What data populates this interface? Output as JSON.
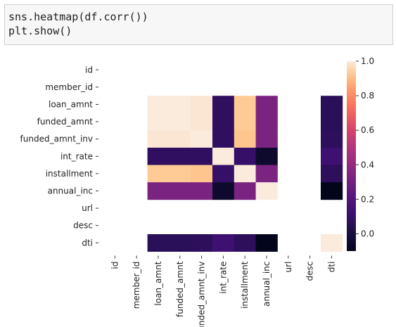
{
  "code_cell": {
    "lines": [
      "sns.heatmap(df.corr())",
      "plt.show()"
    ]
  },
  "chart_data": {
    "type": "heatmap",
    "title": "",
    "xlabel": "",
    "ylabel": "",
    "labels": [
      "id",
      "member_id",
      "loan_amnt",
      "funded_amnt",
      "funded_amnt_inv",
      "int_rate",
      "installment",
      "annual_inc",
      "url",
      "desc",
      "dti"
    ],
    "x_tick_labels": [
      "id",
      "member_id",
      "loan_amnt",
      "funded_amnt",
      "funded_amnt_inv",
      "int_rate",
      "installment",
      "annual_inc",
      "url",
      "desc",
      "dti"
    ],
    "y_tick_labels": [
      "id",
      "member_id",
      "loan_amnt",
      "funded_amnt",
      "funded_amnt_inv",
      "int_rate",
      "installment",
      "annual_inc",
      "url",
      "desc",
      "dti"
    ],
    "matrix": [
      [
        null,
        null,
        null,
        null,
        null,
        null,
        null,
        null,
        null,
        null,
        null
      ],
      [
        null,
        null,
        null,
        null,
        null,
        null,
        null,
        null,
        null,
        null,
        null
      ],
      [
        null,
        null,
        1.0,
        1.0,
        0.99,
        0.08,
        0.93,
        0.33,
        null,
        null,
        0.06
      ],
      [
        null,
        null,
        1.0,
        1.0,
        0.99,
        0.08,
        0.93,
        0.33,
        null,
        null,
        0.06
      ],
      [
        null,
        null,
        0.99,
        0.99,
        1.0,
        0.08,
        0.92,
        0.33,
        null,
        null,
        0.07
      ],
      [
        null,
        null,
        0.08,
        0.08,
        0.08,
        1.0,
        0.1,
        -0.05,
        null,
        null,
        0.13
      ],
      [
        null,
        null,
        0.93,
        0.93,
        0.92,
        0.1,
        1.0,
        0.33,
        null,
        null,
        0.07
      ],
      [
        null,
        null,
        0.33,
        0.33,
        0.33,
        -0.05,
        0.33,
        1.0,
        null,
        null,
        -0.1
      ],
      [
        null,
        null,
        null,
        null,
        null,
        null,
        null,
        null,
        null,
        null,
        null
      ],
      [
        null,
        null,
        null,
        null,
        null,
        null,
        null,
        null,
        null,
        null,
        null
      ],
      [
        null,
        null,
        0.06,
        0.06,
        0.07,
        0.13,
        0.07,
        -0.1,
        null,
        null,
        1.0
      ]
    ],
    "colormap": "rocket",
    "colorbar": {
      "vmin": -0.1,
      "vmax": 1.0,
      "ticks": [
        0.0,
        0.2,
        0.4,
        0.6,
        0.8,
        1.0
      ],
      "tick_labels": [
        "0.0",
        "0.2",
        "0.4",
        "0.6",
        "0.8",
        "1.0"
      ]
    },
    "grid": false,
    "legend": "colorbar-right"
  }
}
